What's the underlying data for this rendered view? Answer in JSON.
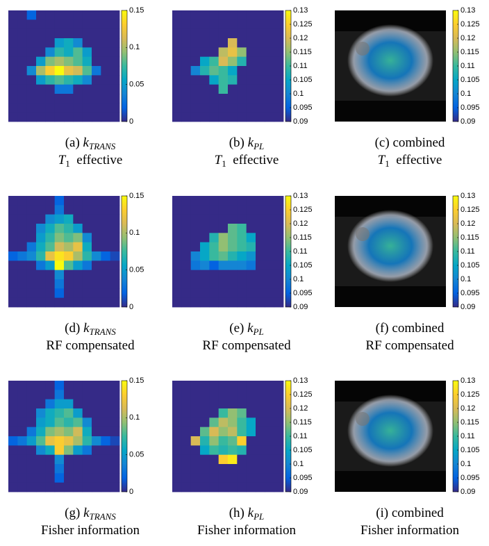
{
  "colormap": [
    "#352a87",
    "#0363e1",
    "#1485d4",
    "#06a7c6",
    "#38b99e",
    "#92bf73",
    "#d9ba56",
    "#fcce2e",
    "#f9fb0e"
  ],
  "panels": [
    {
      "caption": {
        "label": "(a)",
        "symbol": "k",
        "subscript": "TRANS"
      },
      "line2": {
        "symbol": "T",
        "subscript": "1",
        "text": "effective"
      },
      "clim": [
        0,
        0.15
      ],
      "ticks": [
        0,
        0.05,
        0.1,
        0.15
      ],
      "grid": [
        [
          0,
          0,
          0.02,
          0,
          0,
          0,
          0,
          0,
          0,
          0,
          0,
          0
        ],
        [
          0,
          0,
          0,
          0,
          0,
          0,
          0,
          0,
          0,
          0,
          0,
          0
        ],
        [
          0,
          0,
          0,
          0,
          0,
          0,
          0,
          0,
          0,
          0,
          0,
          0
        ],
        [
          0,
          0,
          0,
          0,
          0,
          0.05,
          0.06,
          0.04,
          0,
          0,
          0,
          0
        ],
        [
          0,
          0,
          0,
          0,
          0.04,
          0.07,
          0.06,
          0.08,
          0.05,
          0,
          0,
          0
        ],
        [
          0,
          0,
          0,
          0.05,
          0.09,
          0.1,
          0.09,
          0.08,
          0.06,
          0,
          0,
          0
        ],
        [
          0,
          0,
          0.04,
          0.1,
          0.13,
          0.15,
          0.12,
          0.11,
          0.08,
          0.03,
          0,
          0
        ],
        [
          0,
          0,
          0,
          0.05,
          0.07,
          0.08,
          0.07,
          0.06,
          0.04,
          0,
          0,
          0
        ],
        [
          0,
          0,
          0,
          0,
          0,
          0.03,
          0.03,
          0,
          0,
          0,
          0,
          0
        ],
        [
          0,
          0,
          0,
          0,
          0,
          0,
          0,
          0,
          0,
          0,
          0,
          0
        ],
        [
          0,
          0,
          0,
          0,
          0,
          0,
          0,
          0,
          0,
          0,
          0,
          0
        ],
        [
          0,
          0,
          0,
          0,
          0,
          0,
          0,
          0,
          0,
          0,
          0,
          0
        ]
      ]
    },
    {
      "caption": {
        "label": "(b)",
        "symbol": "k",
        "subscript": "PL"
      },
      "line2": {
        "symbol": "T",
        "subscript": "1",
        "text": "effective"
      },
      "clim": [
        0.09,
        0.13
      ],
      "ticks": [
        0.09,
        0.095,
        0.1,
        0.105,
        0.11,
        0.115,
        0.12,
        0.125,
        0.13
      ],
      "grid": [
        [
          0.09,
          0.09,
          0.09,
          0.09,
          0.09,
          0.09,
          0.09,
          0.09,
          0.09,
          0.09,
          0.09,
          0.09
        ],
        [
          0.09,
          0.09,
          0.09,
          0.09,
          0.09,
          0.09,
          0.09,
          0.09,
          0.09,
          0.09,
          0.09,
          0.09
        ],
        [
          0.09,
          0.09,
          0.09,
          0.09,
          0.09,
          0.09,
          0.09,
          0.09,
          0.09,
          0.09,
          0.09,
          0.09
        ],
        [
          0.09,
          0.09,
          0.09,
          0.09,
          0.09,
          0.09,
          0.12,
          0.09,
          0.09,
          0.09,
          0.09,
          0.09
        ],
        [
          0.09,
          0.09,
          0.09,
          0.09,
          0.09,
          0.118,
          0.122,
          0.115,
          0.09,
          0.09,
          0.09,
          0.09
        ],
        [
          0.09,
          0.09,
          0.09,
          0.105,
          0.11,
          0.12,
          0.115,
          0.108,
          0.09,
          0.09,
          0.09,
          0.09
        ],
        [
          0.09,
          0.09,
          0.1,
          0.108,
          0.112,
          0.11,
          0.105,
          0.09,
          0.09,
          0.09,
          0.09,
          0.09
        ],
        [
          0.09,
          0.09,
          0.09,
          0.09,
          0.105,
          0.11,
          0.108,
          0.09,
          0.09,
          0.09,
          0.09,
          0.09
        ],
        [
          0.09,
          0.09,
          0.09,
          0.09,
          0.09,
          0.11,
          0.09,
          0.09,
          0.09,
          0.09,
          0.09,
          0.09
        ],
        [
          0.09,
          0.09,
          0.09,
          0.09,
          0.09,
          0.09,
          0.09,
          0.09,
          0.09,
          0.09,
          0.09,
          0.09
        ],
        [
          0.09,
          0.09,
          0.09,
          0.09,
          0.09,
          0.09,
          0.09,
          0.09,
          0.09,
          0.09,
          0.09,
          0.09
        ],
        [
          0.09,
          0.09,
          0.09,
          0.09,
          0.09,
          0.09,
          0.09,
          0.09,
          0.09,
          0.09,
          0.09,
          0.09
        ]
      ]
    },
    {
      "caption": {
        "label": "(c)",
        "text": "combined"
      },
      "line2": {
        "symbol": "T",
        "subscript": "1",
        "text": "effective"
      },
      "clim": [
        0.09,
        0.13
      ],
      "ticks": [
        0.09,
        0.095,
        0.1,
        0.105,
        0.11,
        0.115,
        0.12,
        0.125,
        0.13
      ]
    },
    {
      "caption": {
        "label": "(d)",
        "symbol": "k",
        "subscript": "TRANS"
      },
      "line2": {
        "text": "RF compensated"
      },
      "clim": [
        0,
        0.15
      ],
      "ticks": [
        0,
        0.05,
        0.1,
        0.15
      ],
      "grid": [
        [
          0,
          0,
          0,
          0,
          0,
          0.02,
          0,
          0,
          0,
          0,
          0,
          0
        ],
        [
          0,
          0,
          0,
          0,
          0,
          0.03,
          0,
          0,
          0,
          0,
          0,
          0
        ],
        [
          0,
          0,
          0,
          0,
          0.04,
          0.05,
          0.06,
          0,
          0,
          0,
          0,
          0
        ],
        [
          0,
          0,
          0,
          0.04,
          0.06,
          0.08,
          0.07,
          0.05,
          0,
          0,
          0,
          0
        ],
        [
          0,
          0,
          0,
          0.05,
          0.07,
          0.09,
          0.08,
          0.09,
          0.04,
          0,
          0,
          0
        ],
        [
          0,
          0,
          0.03,
          0.06,
          0.08,
          0.11,
          0.1,
          0.12,
          0.06,
          0,
          0,
          0
        ],
        [
          0.02,
          0.03,
          0.04,
          0.07,
          0.12,
          0.14,
          0.13,
          0.1,
          0.07,
          0.04,
          0.02,
          0.01
        ],
        [
          0,
          0,
          0,
          0.03,
          0.05,
          0.15,
          0.08,
          0.05,
          0.03,
          0,
          0,
          0
        ],
        [
          0,
          0,
          0,
          0,
          0,
          0.04,
          0,
          0,
          0,
          0,
          0,
          0
        ],
        [
          0,
          0,
          0,
          0,
          0,
          0.03,
          0,
          0,
          0,
          0,
          0,
          0
        ],
        [
          0,
          0,
          0,
          0,
          0,
          0.02,
          0,
          0,
          0,
          0,
          0,
          0
        ],
        [
          0,
          0,
          0,
          0,
          0,
          0,
          0,
          0,
          0,
          0,
          0,
          0
        ]
      ]
    },
    {
      "caption": {
        "label": "(e)",
        "symbol": "k",
        "subscript": "PL"
      },
      "line2": {
        "text": "RF compensated"
      },
      "clim": [
        0.09,
        0.13
      ],
      "ticks": [
        0.09,
        0.095,
        0.1,
        0.105,
        0.11,
        0.115,
        0.12,
        0.125,
        0.13
      ],
      "grid": [
        [
          0.09,
          0.09,
          0.09,
          0.09,
          0.09,
          0.09,
          0.09,
          0.09,
          0.09,
          0.09,
          0.09,
          0.09
        ],
        [
          0.09,
          0.09,
          0.09,
          0.09,
          0.09,
          0.09,
          0.09,
          0.09,
          0.09,
          0.09,
          0.09,
          0.09
        ],
        [
          0.09,
          0.09,
          0.09,
          0.09,
          0.09,
          0.09,
          0.09,
          0.09,
          0.09,
          0.09,
          0.09,
          0.09
        ],
        [
          0.09,
          0.09,
          0.09,
          0.09,
          0.09,
          0.09,
          0.112,
          0.11,
          0.09,
          0.09,
          0.09,
          0.09
        ],
        [
          0.09,
          0.09,
          0.09,
          0.09,
          0.108,
          0.115,
          0.112,
          0.11,
          0.105,
          0.09,
          0.09,
          0.09
        ],
        [
          0.09,
          0.09,
          0.09,
          0.105,
          0.11,
          0.115,
          0.112,
          0.11,
          0.108,
          0.09,
          0.09,
          0.09
        ],
        [
          0.09,
          0.09,
          0.1,
          0.105,
          0.11,
          0.112,
          0.108,
          0.105,
          0.102,
          0.09,
          0.09,
          0.09
        ],
        [
          0.09,
          0.09,
          0.098,
          0.1,
          0.095,
          0.1,
          0.1,
          0.1,
          0.098,
          0.09,
          0.09,
          0.09
        ],
        [
          0.09,
          0.09,
          0.09,
          0.09,
          0.09,
          0.09,
          0.09,
          0.09,
          0.09,
          0.09,
          0.09,
          0.09
        ],
        [
          0.09,
          0.09,
          0.09,
          0.09,
          0.09,
          0.09,
          0.09,
          0.09,
          0.09,
          0.09,
          0.09,
          0.09
        ],
        [
          0.09,
          0.09,
          0.09,
          0.09,
          0.09,
          0.09,
          0.09,
          0.09,
          0.09,
          0.09,
          0.09,
          0.09
        ],
        [
          0.09,
          0.09,
          0.09,
          0.09,
          0.09,
          0.09,
          0.09,
          0.09,
          0.09,
          0.09,
          0.09,
          0.09
        ]
      ]
    },
    {
      "caption": {
        "label": "(f)",
        "text": "combined"
      },
      "line2": {
        "text": "RF compensated"
      },
      "clim": [
        0.09,
        0.13
      ],
      "ticks": [
        0.09,
        0.095,
        0.1,
        0.105,
        0.11,
        0.115,
        0.12,
        0.125,
        0.13
      ]
    },
    {
      "caption": {
        "label": "(g)",
        "symbol": "k",
        "subscript": "TRANS"
      },
      "line2": {
        "text": "Fisher information"
      },
      "clim": [
        0,
        0.15
      ],
      "ticks": [
        0,
        0.05,
        0.1,
        0.15
      ],
      "grid": [
        [
          0,
          0,
          0,
          0,
          0,
          0.02,
          0,
          0,
          0,
          0,
          0,
          0
        ],
        [
          0,
          0,
          0,
          0,
          0,
          0.03,
          0,
          0,
          0,
          0,
          0,
          0
        ],
        [
          0,
          0,
          0,
          0,
          0.03,
          0.05,
          0.05,
          0,
          0,
          0,
          0,
          0
        ],
        [
          0,
          0,
          0,
          0.04,
          0.06,
          0.07,
          0.08,
          0.05,
          0,
          0,
          0,
          0
        ],
        [
          0,
          0,
          0,
          0.05,
          0.06,
          0.08,
          0.07,
          0.08,
          0.04,
          0,
          0,
          0
        ],
        [
          0,
          0,
          0.03,
          0.06,
          0.09,
          0.1,
          0.09,
          0.11,
          0.06,
          0,
          0,
          0
        ],
        [
          0.02,
          0.03,
          0.05,
          0.08,
          0.12,
          0.13,
          0.12,
          0.1,
          0.07,
          0.04,
          0.02,
          0.01
        ],
        [
          0,
          0,
          0,
          0.04,
          0.06,
          0.13,
          0.09,
          0.05,
          0.03,
          0,
          0,
          0
        ],
        [
          0,
          0,
          0,
          0,
          0,
          0.04,
          0,
          0,
          0,
          0,
          0,
          0
        ],
        [
          0,
          0,
          0,
          0,
          0,
          0.03,
          0,
          0,
          0,
          0,
          0,
          0
        ],
        [
          0,
          0,
          0,
          0,
          0,
          0.02,
          0,
          0,
          0,
          0,
          0,
          0
        ],
        [
          0,
          0,
          0,
          0,
          0,
          0,
          0,
          0,
          0,
          0,
          0,
          0
        ]
      ]
    },
    {
      "caption": {
        "label": "(h)",
        "symbol": "k",
        "subscript": "PL"
      },
      "line2": {
        "text": "Fisher information"
      },
      "clim": [
        0.09,
        0.13
      ],
      "ticks": [
        0.09,
        0.095,
        0.1,
        0.105,
        0.11,
        0.115,
        0.12,
        0.125,
        0.13
      ],
      "grid": [
        [
          0.09,
          0.09,
          0.09,
          0.09,
          0.09,
          0.09,
          0.09,
          0.09,
          0.09,
          0.09,
          0.09,
          0.09
        ],
        [
          0.09,
          0.09,
          0.09,
          0.09,
          0.09,
          0.09,
          0.09,
          0.09,
          0.09,
          0.09,
          0.09,
          0.09
        ],
        [
          0.09,
          0.09,
          0.09,
          0.09,
          0.09,
          0.09,
          0.09,
          0.09,
          0.09,
          0.09,
          0.09,
          0.09
        ],
        [
          0.09,
          0.09,
          0.09,
          0.09,
          0.09,
          0.11,
          0.115,
          0.112,
          0.09,
          0.09,
          0.09,
          0.09
        ],
        [
          0.09,
          0.09,
          0.09,
          0.09,
          0.112,
          0.118,
          0.115,
          0.11,
          0.105,
          0.09,
          0.09,
          0.09
        ],
        [
          0.09,
          0.09,
          0.09,
          0.112,
          0.12,
          0.115,
          0.118,
          0.11,
          0.105,
          0.09,
          0.09,
          0.09
        ],
        [
          0.09,
          0.09,
          0.12,
          0.108,
          0.115,
          0.11,
          0.112,
          0.125,
          0.09,
          0.09,
          0.09,
          0.09
        ],
        [
          0.09,
          0.09,
          0.09,
          0.105,
          0.11,
          0.108,
          0.11,
          0.108,
          0.09,
          0.09,
          0.09,
          0.09
        ],
        [
          0.09,
          0.09,
          0.09,
          0.09,
          0.09,
          0.125,
          0.128,
          0.09,
          0.09,
          0.09,
          0.09,
          0.09
        ],
        [
          0.09,
          0.09,
          0.09,
          0.09,
          0.09,
          0.09,
          0.09,
          0.09,
          0.09,
          0.09,
          0.09,
          0.09
        ],
        [
          0.09,
          0.09,
          0.09,
          0.09,
          0.09,
          0.09,
          0.09,
          0.09,
          0.09,
          0.09,
          0.09,
          0.09
        ],
        [
          0.09,
          0.09,
          0.09,
          0.09,
          0.09,
          0.09,
          0.09,
          0.09,
          0.09,
          0.09,
          0.09,
          0.09
        ]
      ]
    },
    {
      "caption": {
        "label": "(i)",
        "text": "combined"
      },
      "line2": {
        "text": "Fisher information"
      },
      "clim": [
        0.09,
        0.13
      ],
      "ticks": [
        0.09,
        0.095,
        0.1,
        0.105,
        0.11,
        0.115,
        0.12,
        0.125,
        0.13
      ]
    }
  ]
}
